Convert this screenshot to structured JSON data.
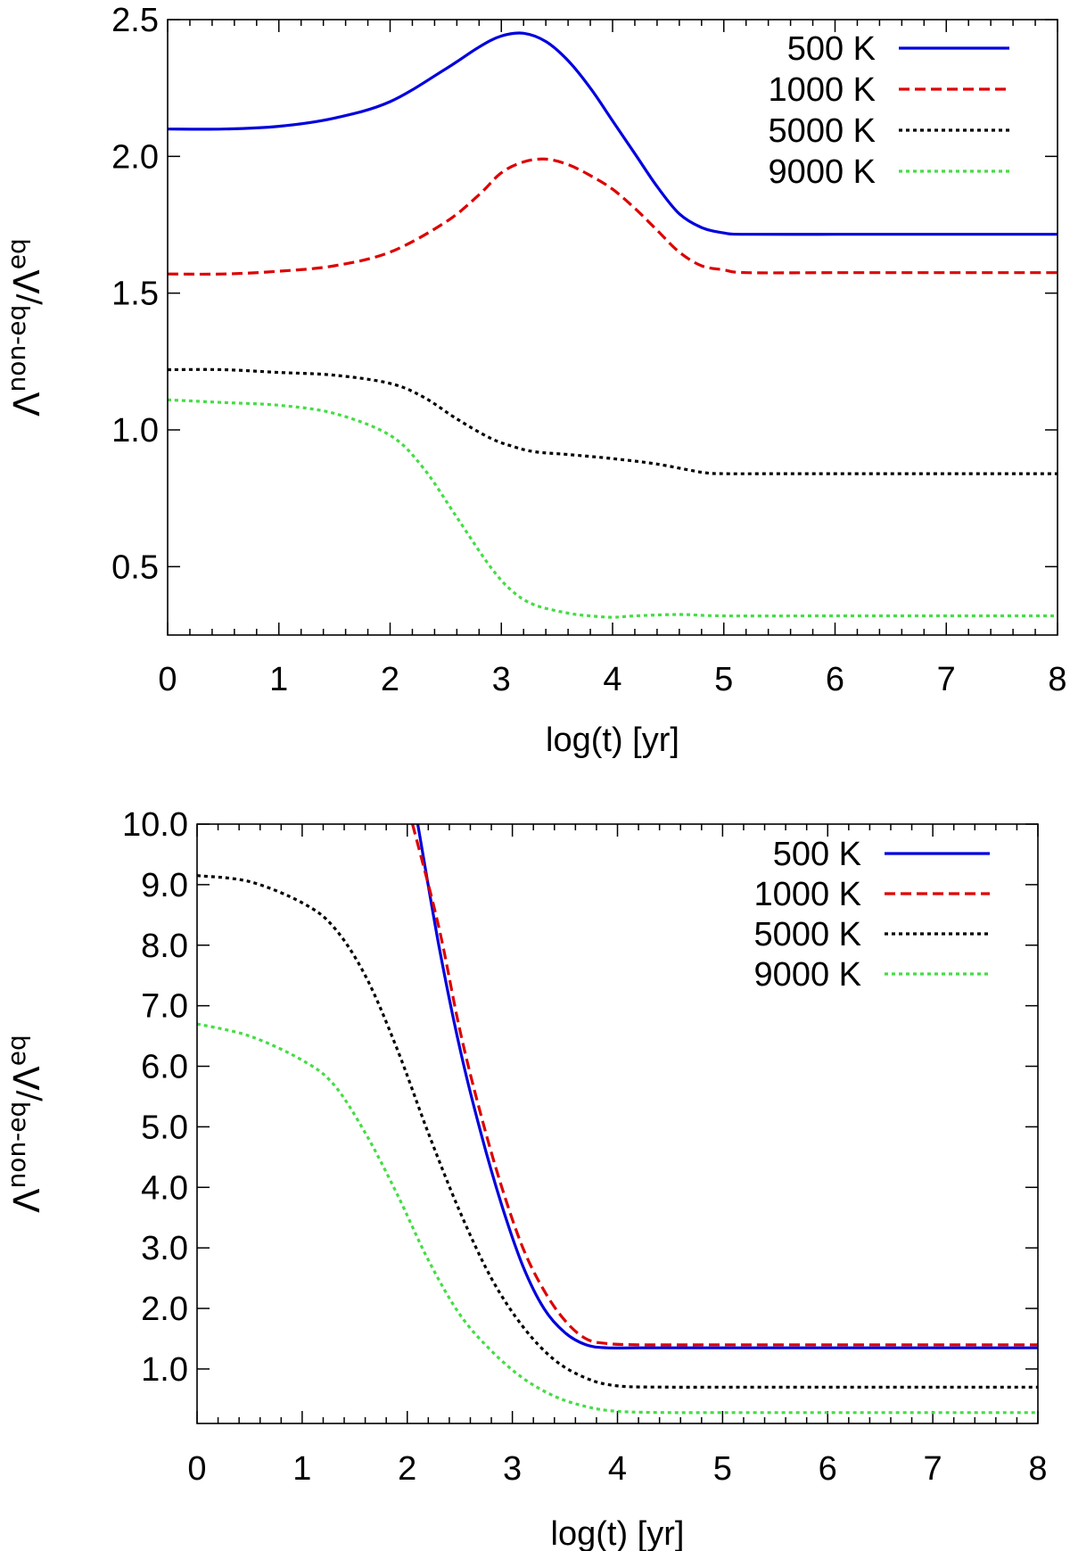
{
  "chart_data": [
    {
      "type": "line",
      "xlabel": "log(t) [yr]",
      "ylabel_base": "Λ",
      "ylabel_sup_num": "non-eq",
      "ylabel_sep": "/",
      "ylabel_base2": "Λ",
      "ylabel_sup_den": "eq",
      "xlim": [
        0,
        8
      ],
      "ylim": [
        0.25,
        2.5
      ],
      "xticks": [
        0,
        1,
        2,
        3,
        4,
        5,
        6,
        7,
        8
      ],
      "xtick_labels": [
        "0",
        "1",
        "2",
        "3",
        "4",
        "5",
        "6",
        "7",
        "8"
      ],
      "yticks": [
        0.5,
        1.0,
        1.5,
        2.0,
        2.5
      ],
      "ytick_labels": [
        "0.5",
        "1.0",
        "1.5",
        "2.0",
        "2.5"
      ],
      "legend_position": "top-right",
      "series": [
        {
          "name": "500 K",
          "color": "#0000dd",
          "style": "solid",
          "x": [
            0,
            0.5,
            1,
            1.5,
            2,
            2.5,
            2.8,
            3.0,
            3.2,
            3.4,
            3.6,
            3.8,
            4.0,
            4.2,
            4.4,
            4.6,
            4.8,
            5.0,
            5.2,
            6,
            7,
            8
          ],
          "y": [
            2.1,
            2.1,
            2.11,
            2.14,
            2.2,
            2.32,
            2.4,
            2.44,
            2.45,
            2.42,
            2.35,
            2.25,
            2.13,
            2.01,
            1.89,
            1.79,
            1.74,
            1.72,
            1.715,
            1.715,
            1.715,
            1.715
          ]
        },
        {
          "name": "1000 K",
          "color": "#dd0000",
          "style": "dashed",
          "x": [
            0,
            0.5,
            1,
            1.5,
            2,
            2.5,
            2.8,
            3.0,
            3.2,
            3.4,
            3.6,
            3.8,
            4.0,
            4.2,
            4.4,
            4.6,
            4.8,
            5.0,
            5.2,
            6,
            7,
            8
          ],
          "y": [
            1.57,
            1.57,
            1.58,
            1.6,
            1.65,
            1.76,
            1.86,
            1.94,
            1.98,
            1.99,
            1.97,
            1.93,
            1.88,
            1.81,
            1.73,
            1.65,
            1.6,
            1.585,
            1.575,
            1.575,
            1.575,
            1.575
          ]
        },
        {
          "name": "5000 K",
          "color": "#000000",
          "style": "dotted",
          "x": [
            0,
            0.5,
            1,
            1.5,
            2,
            2.3,
            2.6,
            2.9,
            3.1,
            3.3,
            3.6,
            4.0,
            4.4,
            4.8,
            5.0,
            5.5,
            6,
            7,
            8
          ],
          "y": [
            1.22,
            1.22,
            1.21,
            1.2,
            1.17,
            1.12,
            1.04,
            0.97,
            0.94,
            0.92,
            0.91,
            0.895,
            0.875,
            0.845,
            0.84,
            0.84,
            0.84,
            0.84,
            0.84
          ]
        },
        {
          "name": "9000 K",
          "color": "#44dd44",
          "style": "dotted",
          "x": [
            0,
            0.5,
            1,
            1.5,
            2,
            2.3,
            2.6,
            2.9,
            3.1,
            3.3,
            3.6,
            3.8,
            4.0,
            4.2,
            4.6,
            5.0,
            6,
            7,
            8
          ],
          "y": [
            1.11,
            1.1,
            1.09,
            1.06,
            0.98,
            0.86,
            0.68,
            0.5,
            0.41,
            0.36,
            0.33,
            0.32,
            0.315,
            0.32,
            0.325,
            0.32,
            0.32,
            0.32,
            0.32
          ]
        }
      ]
    },
    {
      "type": "line",
      "xlabel": "log(t) [yr]",
      "ylabel_base": "Λ",
      "ylabel_sup_num": "non-eq",
      "ylabel_sep": "/",
      "ylabel_base2": "Λ",
      "ylabel_sup_den": "eq",
      "xlim": [
        0,
        8
      ],
      "ylim": [
        0.1,
        10.0
      ],
      "xticks": [
        0,
        1,
        2,
        3,
        4,
        5,
        6,
        7,
        8
      ],
      "xtick_labels": [
        "0",
        "1",
        "2",
        "3",
        "4",
        "5",
        "6",
        "7",
        "8"
      ],
      "yticks": [
        1,
        2,
        3,
        4,
        5,
        6,
        7,
        8,
        9,
        10
      ],
      "ytick_labels": [
        "1.0",
        "2.0",
        "3.0",
        "4.0",
        "5.0",
        "6.0",
        "7.0",
        "8.0",
        "9.0",
        "10.0"
      ],
      "legend_position": "top-right",
      "series": [
        {
          "name": "500 K",
          "color": "#0000dd",
          "style": "solid",
          "x": [
            2.1,
            2.3,
            2.5,
            2.7,
            2.9,
            3.1,
            3.3,
            3.5,
            3.7,
            3.9,
            4.2,
            5,
            6,
            7,
            8
          ],
          "y": [
            10.0,
            8.0,
            6.3,
            4.9,
            3.7,
            2.7,
            2.0,
            1.6,
            1.4,
            1.35,
            1.35,
            1.35,
            1.35,
            1.35,
            1.35
          ]
        },
        {
          "name": "1000 K",
          "color": "#dd0000",
          "style": "dashed",
          "x": [
            2.05,
            2.3,
            2.5,
            2.7,
            2.9,
            3.1,
            3.3,
            3.5,
            3.7,
            3.9,
            4.2,
            5,
            6,
            7,
            8
          ],
          "y": [
            10.0,
            8.3,
            6.6,
            5.2,
            4.0,
            3.0,
            2.3,
            1.8,
            1.5,
            1.42,
            1.4,
            1.4,
            1.4,
            1.4,
            1.4
          ]
        },
        {
          "name": "5000 K",
          "color": "#000000",
          "style": "dotted",
          "x": [
            0,
            0.5,
            1,
            1.3,
            1.6,
            1.9,
            2.2,
            2.5,
            2.8,
            3.1,
            3.4,
            3.7,
            4.0,
            4.5,
            5,
            6,
            7,
            8
          ],
          "y": [
            9.15,
            9.05,
            8.7,
            8.3,
            7.5,
            6.3,
            4.9,
            3.6,
            2.5,
            1.7,
            1.15,
            0.85,
            0.72,
            0.7,
            0.7,
            0.7,
            0.7,
            0.7
          ]
        },
        {
          "name": "9000 K",
          "color": "#44dd44",
          "style": "dotted",
          "x": [
            0,
            0.5,
            1,
            1.3,
            1.6,
            1.9,
            2.2,
            2.5,
            2.8,
            3.1,
            3.4,
            3.7,
            4.0,
            4.5,
            5,
            6,
            7,
            8
          ],
          "y": [
            6.7,
            6.5,
            6.1,
            5.7,
            4.9,
            3.9,
            2.8,
            1.9,
            1.3,
            0.85,
            0.55,
            0.38,
            0.3,
            0.28,
            0.28,
            0.28,
            0.28,
            0.28
          ]
        }
      ]
    }
  ]
}
